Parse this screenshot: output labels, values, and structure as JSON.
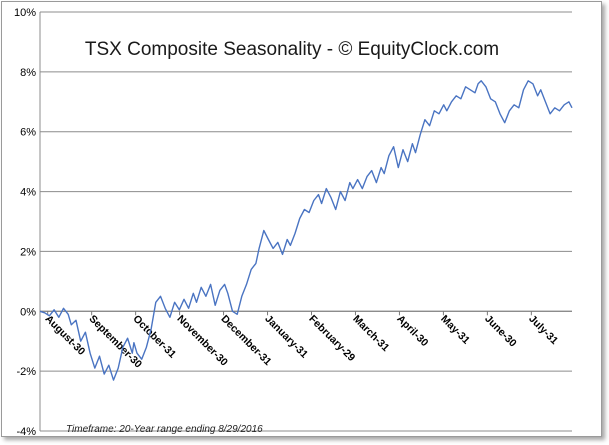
{
  "chart_data": {
    "type": "line",
    "title": "TSX Composite Seasonality - © EquityClock.com",
    "footnote": "Timeframe: 20-Year range ending 8/29/2016",
    "xlabel": "",
    "ylabel": "",
    "ylim": [
      -4,
      10
    ],
    "y_ticks": [
      "-4%",
      "-2%",
      "0%",
      "2%",
      "4%",
      "6%",
      "8%",
      "10%"
    ],
    "y_tick_values": [
      -4,
      -2,
      0,
      2,
      4,
      6,
      8,
      10
    ],
    "grid": true,
    "legend": "none",
    "line_color": "#4a74c2",
    "categories": [
      "August-30",
      "September-30",
      "October-31",
      "November-30",
      "December-31",
      "January-31",
      "February-29",
      "March-31",
      "April-30",
      "May-31",
      "June-30",
      "July-31"
    ],
    "series": [
      {
        "values": [
          [
            0.0,
            0.0
          ],
          [
            0.15,
            -0.05
          ],
          [
            0.3,
            -0.15
          ],
          [
            0.45,
            0.05
          ],
          [
            0.6,
            -0.2
          ],
          [
            0.75,
            0.1
          ],
          [
            0.9,
            -0.1
          ],
          [
            1.0,
            -0.45
          ],
          [
            1.15,
            -0.3
          ],
          [
            1.3,
            -1.0
          ],
          [
            1.45,
            -0.7
          ],
          [
            1.6,
            -1.4
          ],
          [
            1.75,
            -1.9
          ],
          [
            1.9,
            -1.5
          ],
          [
            2.05,
            -2.1
          ],
          [
            2.2,
            -1.8
          ],
          [
            2.35,
            -2.3
          ],
          [
            2.5,
            -1.9
          ],
          [
            2.65,
            -1.2
          ],
          [
            2.8,
            -0.9
          ],
          [
            2.95,
            -1.4
          ],
          [
            3.0,
            -1.05
          ],
          [
            3.1,
            -1.4
          ],
          [
            3.25,
            -1.6
          ],
          [
            3.4,
            -1.2
          ],
          [
            3.55,
            -0.6
          ],
          [
            3.7,
            0.3
          ],
          [
            3.85,
            0.5
          ],
          [
            4.0,
            0.1
          ],
          [
            4.15,
            -0.2
          ],
          [
            4.3,
            0.3
          ],
          [
            4.45,
            0.05
          ],
          [
            4.6,
            0.4
          ],
          [
            4.75,
            0.1
          ],
          [
            4.9,
            0.6
          ],
          [
            5.0,
            0.3
          ],
          [
            5.15,
            0.8
          ],
          [
            5.3,
            0.5
          ],
          [
            5.45,
            0.9
          ],
          [
            5.6,
            0.2
          ],
          [
            5.75,
            0.7
          ],
          [
            5.9,
            0.9
          ],
          [
            6.0,
            0.6
          ],
          [
            6.15,
            0.0
          ],
          [
            6.3,
            -0.1
          ],
          [
            6.45,
            0.5
          ],
          [
            6.6,
            0.9
          ],
          [
            6.75,
            1.4
          ],
          [
            6.9,
            1.6
          ],
          [
            7.0,
            2.1
          ],
          [
            7.15,
            2.7
          ],
          [
            7.3,
            2.4
          ],
          [
            7.45,
            2.1
          ],
          [
            7.6,
            2.3
          ],
          [
            7.75,
            1.9
          ],
          [
            7.9,
            2.4
          ],
          [
            8.0,
            2.2
          ],
          [
            8.15,
            2.6
          ],
          [
            8.3,
            3.1
          ],
          [
            8.45,
            3.4
          ],
          [
            8.6,
            3.3
          ],
          [
            8.75,
            3.7
          ],
          [
            8.9,
            3.9
          ],
          [
            9.0,
            3.6
          ],
          [
            9.15,
            4.1
          ],
          [
            9.3,
            3.8
          ],
          [
            9.45,
            3.4
          ],
          [
            9.6,
            4.0
          ],
          [
            9.75,
            3.7
          ],
          [
            9.9,
            4.3
          ],
          [
            10.0,
            4.1
          ],
          [
            10.15,
            4.4
          ],
          [
            10.3,
            4.1
          ],
          [
            10.45,
            4.5
          ],
          [
            10.6,
            4.7
          ],
          [
            10.75,
            4.3
          ],
          [
            10.9,
            4.8
          ],
          [
            11.0,
            4.6
          ],
          [
            11.15,
            5.2
          ],
          [
            11.3,
            5.5
          ],
          [
            11.45,
            4.8
          ],
          [
            11.6,
            5.4
          ],
          [
            11.75,
            5.0
          ],
          [
            11.9,
            5.6
          ],
          [
            12.0,
            5.3
          ],
          [
            12.15,
            5.9
          ],
          [
            12.3,
            6.4
          ],
          [
            12.45,
            6.2
          ],
          [
            12.6,
            6.7
          ],
          [
            12.75,
            6.6
          ],
          [
            12.9,
            6.9
          ],
          [
            13.0,
            6.7
          ],
          [
            13.15,
            7.0
          ],
          [
            13.3,
            7.2
          ],
          [
            13.45,
            7.1
          ],
          [
            13.6,
            7.5
          ],
          [
            13.75,
            7.4
          ],
          [
            13.9,
            7.3
          ],
          [
            14.0,
            7.6
          ],
          [
            14.1,
            7.7
          ],
          [
            14.25,
            7.5
          ],
          [
            14.4,
            7.1
          ],
          [
            14.55,
            7.0
          ],
          [
            14.7,
            6.6
          ],
          [
            14.85,
            6.3
          ],
          [
            15.0,
            6.7
          ],
          [
            15.15,
            6.9
          ],
          [
            15.3,
            6.8
          ],
          [
            15.45,
            7.4
          ],
          [
            15.6,
            7.7
          ],
          [
            15.75,
            7.6
          ],
          [
            15.9,
            7.2
          ],
          [
            16.0,
            7.4
          ],
          [
            16.15,
            7.0
          ],
          [
            16.3,
            6.6
          ],
          [
            16.45,
            6.8
          ],
          [
            16.6,
            6.7
          ],
          [
            16.75,
            6.9
          ],
          [
            16.9,
            7.0
          ],
          [
            17.0,
            6.8
          ]
        ]
      }
    ]
  }
}
